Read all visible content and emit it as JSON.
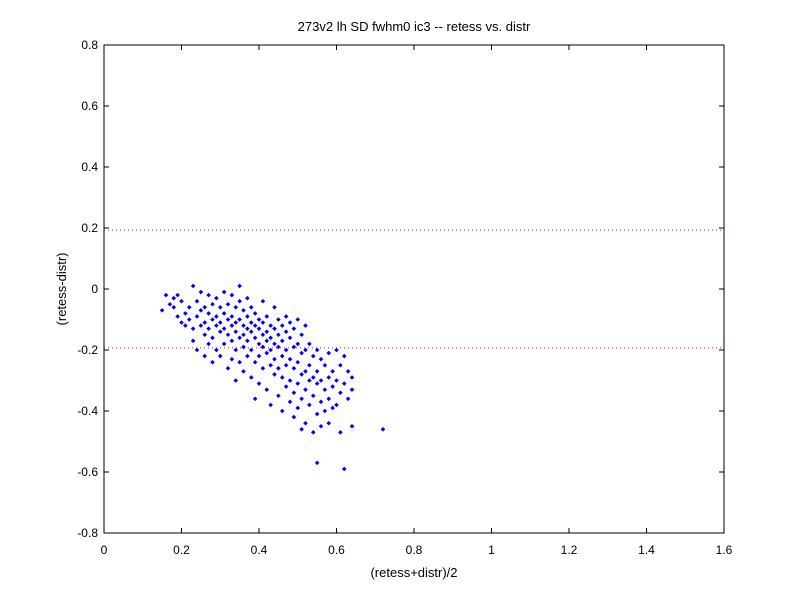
{
  "chart_data": {
    "type": "scatter",
    "title": "273v2 lh SD fwhm0 ic3 -- retess vs. distr",
    "xlabel": "(retess+distr)/2",
    "ylabel": "(retess-distr)",
    "xlim": [
      0,
      1.6
    ],
    "ylim": [
      -0.8,
      0.8
    ],
    "xticks": [
      0,
      0.2,
      0.4,
      0.6,
      0.8,
      1,
      1.2,
      1.4,
      1.6
    ],
    "xtick_labels": [
      "0",
      "0.2",
      "0.4",
      "0.6",
      "0.8",
      "1",
      "1.2",
      "1.4",
      "1.6"
    ],
    "yticks": [
      -0.8,
      -0.6,
      -0.4,
      -0.2,
      0,
      0.2,
      0.4,
      0.6,
      0.8
    ],
    "ytick_labels": [
      "-0.8",
      "-0.6",
      "-0.4",
      "-0.2",
      "0",
      "0.2",
      "0.4",
      "0.6",
      "0.8"
    ],
    "grid": false,
    "marker_color": "#0000ff",
    "reference_line_color": "#ff0000",
    "reference_lines_y": [
      0.193,
      -0.193
    ],
    "series": [
      {
        "points": [
          [
            0.15,
            -0.07
          ],
          [
            0.16,
            -0.02
          ],
          [
            0.17,
            -0.05
          ],
          [
            0.18,
            -0.03
          ],
          [
            0.18,
            -0.06
          ],
          [
            0.19,
            -0.02
          ],
          [
            0.19,
            -0.09
          ],
          [
            0.2,
            -0.04
          ],
          [
            0.2,
            -0.11
          ],
          [
            0.21,
            -0.08
          ],
          [
            0.21,
            -0.12
          ],
          [
            0.22,
            -0.06
          ],
          [
            0.22,
            -0.1
          ],
          [
            0.23,
            0.01
          ],
          [
            0.23,
            -0.13
          ],
          [
            0.23,
            -0.17
          ],
          [
            0.24,
            -0.04
          ],
          [
            0.24,
            -0.09
          ],
          [
            0.24,
            -0.2
          ],
          [
            0.25,
            -0.01
          ],
          [
            0.25,
            -0.07
          ],
          [
            0.25,
            -0.12
          ],
          [
            0.26,
            -0.06
          ],
          [
            0.26,
            -0.11
          ],
          [
            0.26,
            -0.15
          ],
          [
            0.26,
            -0.22
          ],
          [
            0.27,
            -0.02
          ],
          [
            0.27,
            -0.08
          ],
          [
            0.27,
            -0.13
          ],
          [
            0.27,
            -0.18
          ],
          [
            0.28,
            -0.05
          ],
          [
            0.28,
            -0.1
          ],
          [
            0.28,
            -0.16
          ],
          [
            0.28,
            -0.24
          ],
          [
            0.29,
            -0.03
          ],
          [
            0.29,
            -0.09
          ],
          [
            0.29,
            -0.12
          ],
          [
            0.29,
            -0.2
          ],
          [
            0.3,
            -0.06
          ],
          [
            0.3,
            -0.11
          ],
          [
            0.3,
            -0.14
          ],
          [
            0.3,
            -0.22
          ],
          [
            0.31,
            -0.01
          ],
          [
            0.31,
            -0.08
          ],
          [
            0.31,
            -0.13
          ],
          [
            0.31,
            -0.18
          ],
          [
            0.32,
            -0.05
          ],
          [
            0.32,
            -0.1
          ],
          [
            0.32,
            -0.15
          ],
          [
            0.32,
            -0.26
          ],
          [
            0.33,
            -0.02
          ],
          [
            0.33,
            -0.09
          ],
          [
            0.33,
            -0.12
          ],
          [
            0.33,
            -0.17
          ],
          [
            0.33,
            -0.23
          ],
          [
            0.34,
            -0.06
          ],
          [
            0.34,
            -0.11
          ],
          [
            0.34,
            -0.14
          ],
          [
            0.34,
            -0.2
          ],
          [
            0.34,
            -0.3
          ],
          [
            0.35,
            0.01
          ],
          [
            0.35,
            -0.04
          ],
          [
            0.35,
            -0.1
          ],
          [
            0.35,
            -0.16
          ],
          [
            0.35,
            -0.24
          ],
          [
            0.36,
            -0.07
          ],
          [
            0.36,
            -0.12
          ],
          [
            0.36,
            -0.15
          ],
          [
            0.36,
            -0.19
          ],
          [
            0.36,
            -0.27
          ],
          [
            0.37,
            -0.03
          ],
          [
            0.37,
            -0.09
          ],
          [
            0.37,
            -0.13
          ],
          [
            0.37,
            -0.17
          ],
          [
            0.37,
            -0.22
          ],
          [
            0.38,
            -0.06
          ],
          [
            0.38,
            -0.11
          ],
          [
            0.38,
            -0.14
          ],
          [
            0.38,
            -0.2
          ],
          [
            0.38,
            -0.29
          ],
          [
            0.39,
            -0.08
          ],
          [
            0.39,
            -0.12
          ],
          [
            0.39,
            -0.16
          ],
          [
            0.39,
            -0.24
          ],
          [
            0.39,
            -0.36
          ],
          [
            0.4,
            -0.1
          ],
          [
            0.4,
            -0.13
          ],
          [
            0.4,
            -0.18
          ],
          [
            0.4,
            -0.22
          ],
          [
            0.4,
            -0.31
          ],
          [
            0.41,
            -0.04
          ],
          [
            0.41,
            -0.11
          ],
          [
            0.41,
            -0.15
          ],
          [
            0.41,
            -0.19
          ],
          [
            0.41,
            -0.26
          ],
          [
            0.42,
            -0.09
          ],
          [
            0.42,
            -0.14
          ],
          [
            0.42,
            -0.17
          ],
          [
            0.42,
            -0.21
          ],
          [
            0.42,
            -0.33
          ],
          [
            0.43,
            -0.12
          ],
          [
            0.43,
            -0.16
          ],
          [
            0.43,
            -0.2
          ],
          [
            0.43,
            -0.25
          ],
          [
            0.43,
            -0.38
          ],
          [
            0.44,
            -0.06
          ],
          [
            0.44,
            -0.13
          ],
          [
            0.44,
            -0.18
          ],
          [
            0.44,
            -0.23
          ],
          [
            0.44,
            -0.28
          ],
          [
            0.45,
            -0.1
          ],
          [
            0.45,
            -0.15
          ],
          [
            0.45,
            -0.19
          ],
          [
            0.45,
            -0.26
          ],
          [
            0.45,
            -0.35
          ],
          [
            0.46,
            -0.12
          ],
          [
            0.46,
            -0.17
          ],
          [
            0.46,
            -0.22
          ],
          [
            0.46,
            -0.29
          ],
          [
            0.46,
            -0.4
          ],
          [
            0.47,
            -0.09
          ],
          [
            0.47,
            -0.14
          ],
          [
            0.47,
            -0.2
          ],
          [
            0.47,
            -0.25
          ],
          [
            0.47,
            -0.32
          ],
          [
            0.48,
            -0.11
          ],
          [
            0.48,
            -0.16
          ],
          [
            0.48,
            -0.23
          ],
          [
            0.48,
            -0.3
          ],
          [
            0.48,
            -0.37
          ],
          [
            0.49,
            -0.13
          ],
          [
            0.49,
            -0.19
          ],
          [
            0.49,
            -0.26
          ],
          [
            0.49,
            -0.34
          ],
          [
            0.49,
            -0.42
          ],
          [
            0.5,
            -0.1
          ],
          [
            0.5,
            -0.18
          ],
          [
            0.5,
            -0.24
          ],
          [
            0.5,
            -0.31
          ],
          [
            0.5,
            -0.39
          ],
          [
            0.51,
            -0.15
          ],
          [
            0.51,
            -0.21
          ],
          [
            0.51,
            -0.28
          ],
          [
            0.51,
            -0.36
          ],
          [
            0.51,
            -0.46
          ],
          [
            0.52,
            -0.12
          ],
          [
            0.52,
            -0.2
          ],
          [
            0.52,
            -0.27
          ],
          [
            0.52,
            -0.33
          ],
          [
            0.52,
            -0.44
          ],
          [
            0.53,
            -0.18
          ],
          [
            0.53,
            -0.25
          ],
          [
            0.53,
            -0.3
          ],
          [
            0.53,
            -0.38
          ],
          [
            0.54,
            -0.22
          ],
          [
            0.54,
            -0.29
          ],
          [
            0.54,
            -0.35
          ],
          [
            0.54,
            -0.47
          ],
          [
            0.55,
            -0.2
          ],
          [
            0.55,
            -0.27
          ],
          [
            0.55,
            -0.31
          ],
          [
            0.55,
            -0.41
          ],
          [
            0.55,
            -0.57
          ],
          [
            0.56,
            -0.23
          ],
          [
            0.56,
            -0.3
          ],
          [
            0.56,
            -0.37
          ],
          [
            0.56,
            -0.45
          ],
          [
            0.57,
            -0.25
          ],
          [
            0.57,
            -0.33
          ],
          [
            0.57,
            -0.4
          ],
          [
            0.58,
            -0.21
          ],
          [
            0.58,
            -0.29
          ],
          [
            0.58,
            -0.36
          ],
          [
            0.58,
            -0.44
          ],
          [
            0.59,
            -0.27
          ],
          [
            0.59,
            -0.32
          ],
          [
            0.59,
            -0.39
          ],
          [
            0.6,
            -0.2
          ],
          [
            0.6,
            -0.3
          ],
          [
            0.6,
            -0.38
          ],
          [
            0.61,
            -0.25
          ],
          [
            0.61,
            -0.34
          ],
          [
            0.61,
            -0.47
          ],
          [
            0.62,
            -0.22
          ],
          [
            0.62,
            -0.31
          ],
          [
            0.62,
            -0.59
          ],
          [
            0.63,
            -0.27
          ],
          [
            0.63,
            -0.36
          ],
          [
            0.64,
            -0.29
          ],
          [
            0.64,
            -0.33
          ],
          [
            0.64,
            -0.45
          ],
          [
            0.72,
            -0.46
          ]
        ]
      }
    ]
  }
}
